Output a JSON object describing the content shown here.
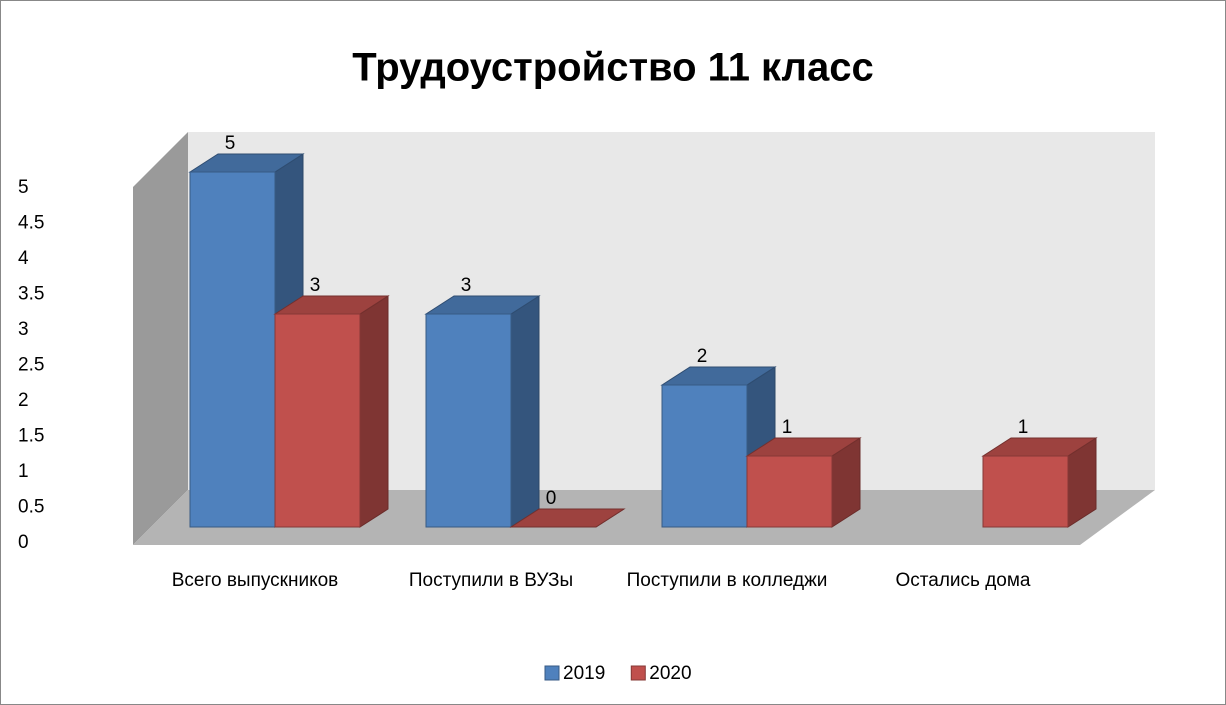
{
  "chart_data": {
    "type": "bar3d",
    "title": "Трудоустройство 11 класс",
    "categories": [
      "Всего выпускников",
      "Поступили в ВУЗы",
      "Поступили в колледжи",
      "Остались дома"
    ],
    "series": [
      {
        "name": "2019",
        "color": "#4f81bd",
        "values": [
          5,
          3,
          2,
          null
        ]
      },
      {
        "name": "2020",
        "color": "#c0504d",
        "values": [
          3,
          0,
          1,
          1
        ]
      }
    ],
    "ylim": [
      0,
      5
    ],
    "yticks": [
      0,
      0.5,
      1,
      1.5,
      2,
      2.5,
      3,
      3.5,
      4,
      4.5,
      5
    ],
    "legend": "bottom"
  }
}
